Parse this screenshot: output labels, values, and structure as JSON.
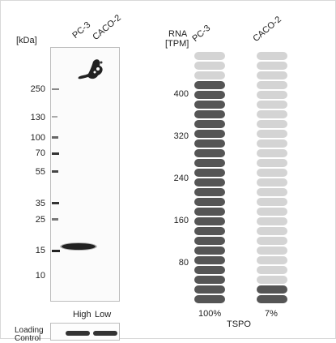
{
  "western_blot": {
    "unit_label": "[kDa]",
    "lanes": [
      "PC-3",
      "CACO-2"
    ],
    "markers": [
      "250",
      "130",
      "100",
      "70",
      "55",
      "35",
      "25",
      "15",
      "10"
    ],
    "expression_labels": {
      "high": "High",
      "low": "Low"
    },
    "loading_control_label": "Loading Control"
  },
  "rna": {
    "title_line1": "RNA",
    "title_line2": "[TPM]",
    "samples": [
      "PC-3",
      "CACO-2"
    ],
    "ticks": [
      "400",
      "320",
      "240",
      "160",
      "80"
    ],
    "gene": "TSPO",
    "percentages": [
      "100%",
      "7%"
    ],
    "levels": [
      1.0,
      0.07
    ],
    "colors": {
      "filled": "#555555",
      "empty": "#d4d4d4"
    }
  }
}
